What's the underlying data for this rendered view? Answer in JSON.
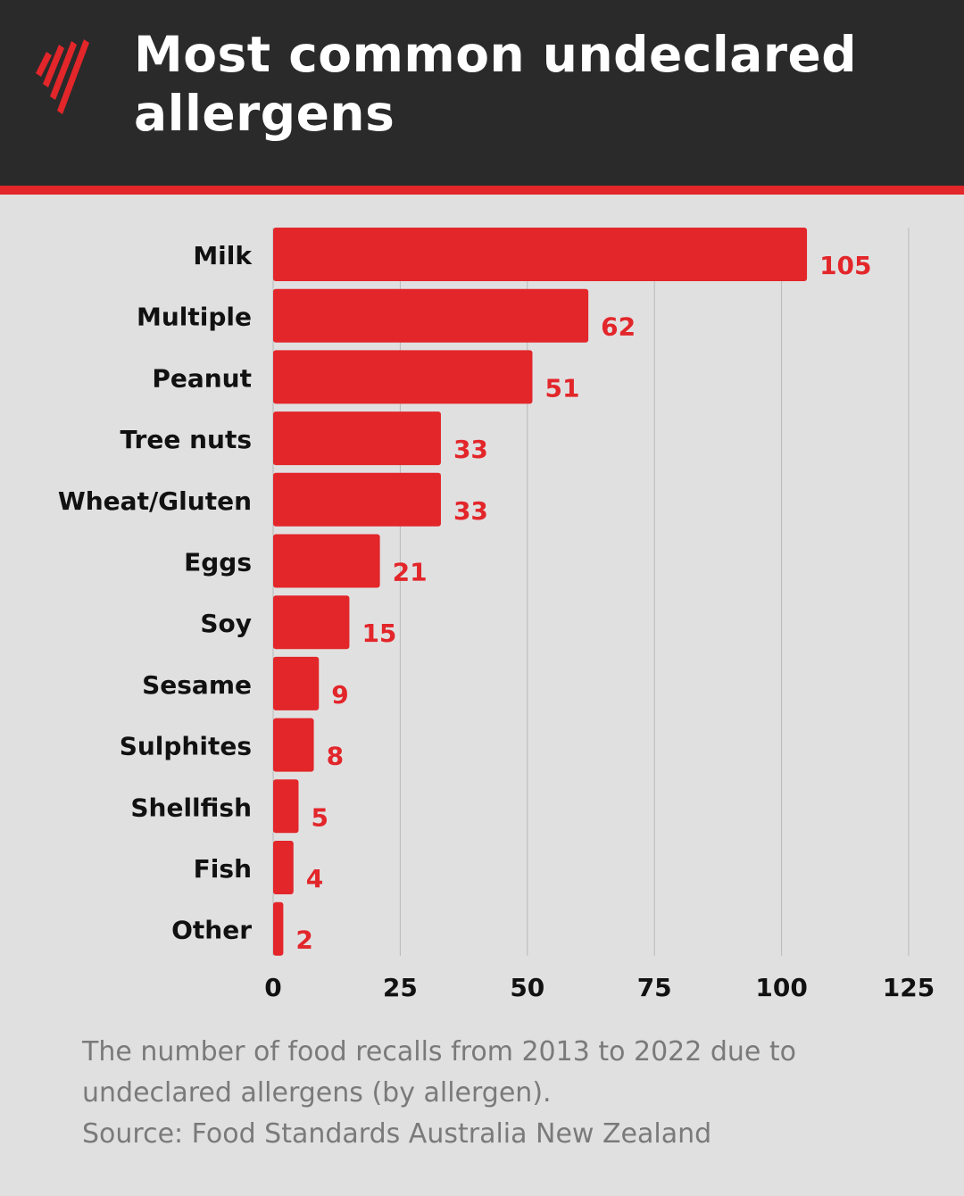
{
  "header": {
    "title_line1": "Most common undeclared",
    "title_line2": "allergens",
    "background_color": "#2a2a2a",
    "rule_color": "#e2262a",
    "logo_icon": "sbs-logo-icon"
  },
  "chart_data": {
    "type": "bar",
    "orientation": "horizontal",
    "categories": [
      "Milk",
      "Multiple",
      "Peanut",
      "Tree nuts",
      "Wheat/Gluten",
      "Eggs",
      "Soy",
      "Sesame",
      "Sulphites",
      "Shellfish",
      "Fish",
      "Other"
    ],
    "values": [
      105,
      62,
      51,
      33,
      33,
      21,
      15,
      9,
      8,
      5,
      4,
      2
    ],
    "xlim": [
      0,
      125
    ],
    "xticks": [
      "0",
      "25",
      "50",
      "75",
      "100",
      "125"
    ],
    "grid": true,
    "bar_color": "#e2262a",
    "label_color": "#e2262a"
  },
  "caption": {
    "line1": "The number of food recalls from 2013 to 2022 due to",
    "line2": "undeclared allergens (by allergen).",
    "line3": "Source: Food Standards Australia New Zealand"
  }
}
